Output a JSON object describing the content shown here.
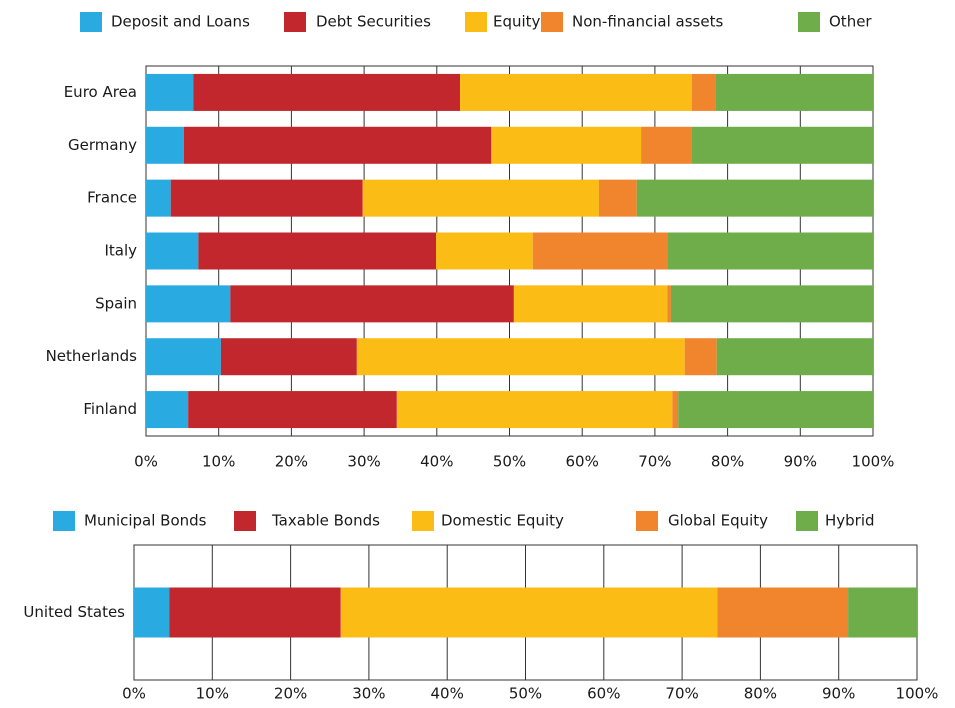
{
  "chart_data": [
    {
      "type": "bar",
      "orientation": "horizontal",
      "stacked": true,
      "legend": "top",
      "grid": true,
      "categories": [
        "Euro Area",
        "Germany",
        "France",
        "Italy",
        "Spain",
        "Netherlands",
        "Finland"
      ],
      "series": [
        {
          "name": "Deposit and Loans",
          "color": "#29abe2",
          "values": [
            6.5,
            5.2,
            3.4,
            7.2,
            11.6,
            10.3,
            5.8
          ]
        },
        {
          "name": "Debt Securities",
          "color": "#c1272d",
          "values": [
            36.7,
            42.3,
            26.4,
            32.7,
            39.0,
            18.7,
            28.7
          ]
        },
        {
          "name": "Equity",
          "color": "#fbbc15",
          "values": [
            31.9,
            20.6,
            32.5,
            13.3,
            21.1,
            45.1,
            37.9
          ]
        },
        {
          "name": "Non-financial assets",
          "color": "#f0852d",
          "values": [
            3.3,
            7.0,
            5.2,
            18.6,
            0.5,
            4.4,
            0.8
          ]
        },
        {
          "name": "Other",
          "color": "#6ead4a",
          "values": [
            21.6,
            24.9,
            32.5,
            28.2,
            27.8,
            21.5,
            26.8
          ]
        }
      ],
      "xlim": [
        0,
        100
      ],
      "xticks": [
        {
          "value": 0,
          "label": "0%"
        },
        {
          "value": 10,
          "label": "10%"
        },
        {
          "value": 20,
          "label": "20%"
        },
        {
          "value": 30,
          "label": "30%"
        },
        {
          "value": 40,
          "label": "40%"
        },
        {
          "value": 50,
          "label": "50%"
        },
        {
          "value": 60,
          "label": "60%"
        },
        {
          "value": 70,
          "label": "70%"
        },
        {
          "value": 80,
          "label": "80%"
        },
        {
          "value": 90,
          "label": "90%"
        },
        {
          "value": 100,
          "label": "100%"
        }
      ]
    },
    {
      "type": "bar",
      "orientation": "horizontal",
      "stacked": true,
      "legend": "top",
      "grid": true,
      "categories": [
        "United States"
      ],
      "series": [
        {
          "name": "Municipal Bonds",
          "color": "#29abe2",
          "values": [
            4.5
          ]
        },
        {
          "name": "Taxable Bonds",
          "color": "#c1272d",
          "values": [
            21.9
          ]
        },
        {
          "name": "Domestic Equity",
          "color": "#fbbc15",
          "values": [
            48.1
          ]
        },
        {
          "name": "Global Equity",
          "color": "#f0852d",
          "values": [
            16.7
          ]
        },
        {
          "name": "Hybrid",
          "color": "#6ead4a",
          "values": [
            8.8
          ]
        }
      ],
      "xlim": [
        0,
        100
      ],
      "xticks": [
        {
          "value": 0,
          "label": "0%"
        },
        {
          "value": 10,
          "label": "10%"
        },
        {
          "value": 20,
          "label": "20%"
        },
        {
          "value": 30,
          "label": "30%"
        },
        {
          "value": 40,
          "label": "40%"
        },
        {
          "value": 50,
          "label": "50%"
        },
        {
          "value": 60,
          "label": "60%"
        },
        {
          "value": 70,
          "label": "70%"
        },
        {
          "value": 80,
          "label": "80%"
        },
        {
          "value": 90,
          "label": "90%"
        },
        {
          "value": 100,
          "label": "100%"
        }
      ]
    }
  ]
}
